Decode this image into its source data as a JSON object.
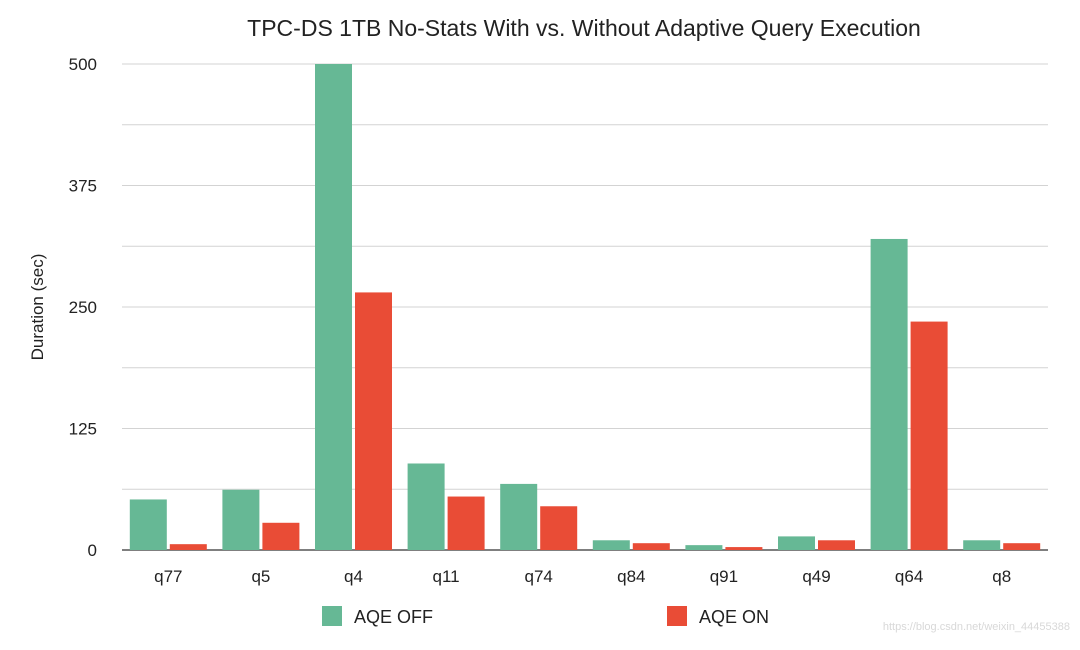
{
  "chart_data": {
    "type": "bar",
    "title": "TPC-DS 1TB No-Stats With vs. Without Adaptive Query Execution",
    "xlabel": "",
    "ylabel": "Duration (sec)",
    "ylim": [
      0,
      500
    ],
    "yticks": [
      0,
      125,
      250,
      375,
      500
    ],
    "grid": true,
    "legend_position": "bottom",
    "categories": [
      "q77",
      "q5",
      "q4",
      "q11",
      "q74",
      "q84",
      "q91",
      "q49",
      "q64",
      "q8"
    ],
    "series": [
      {
        "name": "AQE OFF",
        "color": "#66b895",
        "values": [
          52,
          62,
          500,
          89,
          68,
          10,
          5,
          14,
          320,
          10
        ]
      },
      {
        "name": "AQE ON",
        "color": "#e94c36",
        "values": [
          6,
          28,
          265,
          55,
          45,
          7,
          3,
          10,
          235,
          7
        ]
      }
    ]
  },
  "watermark": "https://blog.csdn.net/weixin_44455388"
}
